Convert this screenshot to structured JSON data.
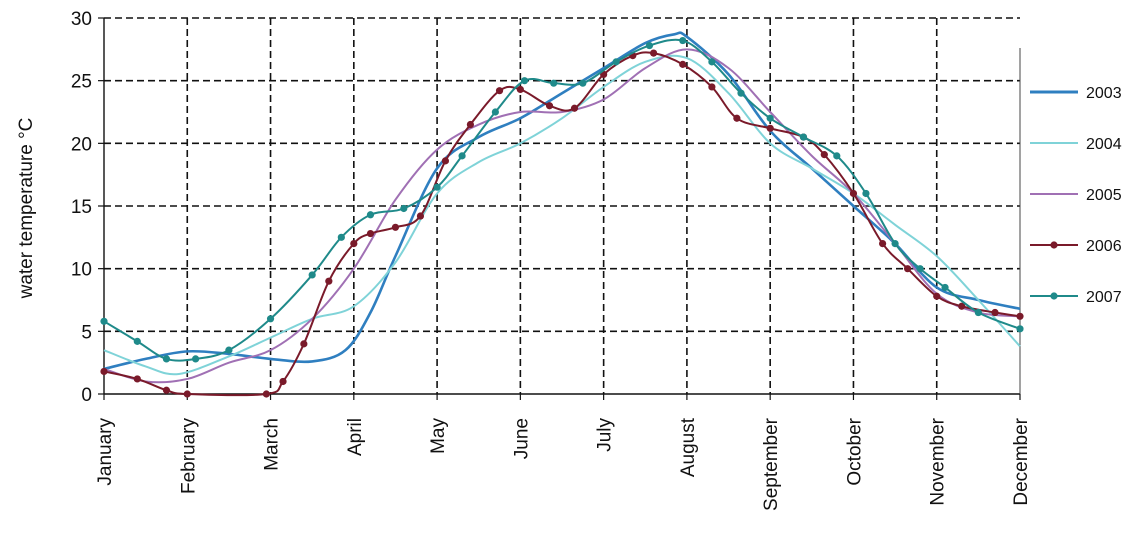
{
  "chart_data": {
    "type": "line",
    "title": "",
    "xlabel": "",
    "ylabel": "water temperature °C",
    "ylim": [
      0,
      30
    ],
    "yticks": [
      "0",
      "5",
      "10",
      "15",
      "20",
      "25",
      "30"
    ],
    "month_labels": [
      "January",
      "February",
      "March",
      "April",
      "May",
      "June",
      "July",
      "August",
      "September",
      "October",
      "November",
      "December"
    ],
    "grid": true,
    "legend_position": "right",
    "x_unit_note": "x values in months (0 = January gridline, 11 = December gridline)",
    "series": [
      {
        "name": "2003",
        "color": "#2f7fc0",
        "style": "solid",
        "markers": false,
        "x": [
          0,
          0.5,
          1,
          1.5,
          2,
          2.5,
          2.9,
          3.2,
          3.5,
          4,
          4.5,
          5,
          5.5,
          6,
          6.5,
          6.85,
          7.0,
          7.5,
          8,
          8.5,
          9,
          9.5,
          10,
          10.5,
          11
        ],
        "y": [
          2.0,
          2.8,
          3.4,
          3.2,
          2.8,
          2.6,
          3.5,
          6.5,
          11.0,
          18.0,
          20.5,
          22.0,
          24.0,
          26.0,
          28.0,
          28.7,
          28.5,
          25.5,
          21.0,
          18.0,
          15.0,
          12.0,
          8.5,
          7.5,
          6.8
        ]
      },
      {
        "name": "2004",
        "color": "#7fd3d8",
        "style": "solid",
        "markers": false,
        "x": [
          0,
          0.5,
          0.9,
          1.5,
          2,
          2.5,
          3,
          3.5,
          4,
          4.5,
          5,
          5.5,
          6,
          6.5,
          7,
          7.5,
          8,
          8.5,
          9,
          9.5,
          10,
          10.5,
          11
        ],
        "y": [
          3.5,
          2.2,
          1.6,
          3.0,
          4.5,
          6.0,
          7.0,
          10.5,
          16.0,
          18.5,
          20.0,
          22.0,
          24.5,
          26.5,
          26.8,
          24.0,
          20.0,
          18.0,
          16.0,
          13.5,
          11.0,
          7.5,
          3.8
        ]
      },
      {
        "name": "2005",
        "color": "#a070b4",
        "style": "solid",
        "markers": false,
        "x": [
          0,
          0.5,
          1,
          1.5,
          2,
          2.5,
          3,
          3.5,
          4,
          4.5,
          5,
          5.5,
          6,
          6.5,
          7,
          7.5,
          8,
          8.5,
          9,
          9.5,
          10,
          10.5,
          11
        ],
        "y": [
          2.0,
          1.0,
          1.2,
          2.5,
          3.5,
          6.0,
          10.0,
          15.5,
          19.5,
          21.5,
          22.5,
          22.5,
          23.5,
          26.0,
          27.5,
          26.0,
          22.5,
          19.0,
          16.0,
          12.0,
          8.0,
          6.5,
          6.2
        ]
      },
      {
        "name": "2006",
        "color": "#7a1a2a",
        "style": "solid",
        "markers": true,
        "x": [
          0,
          0.4,
          0.75,
          1.0,
          1.95,
          2.15,
          2.4,
          2.7,
          3.0,
          3.2,
          3.5,
          3.8,
          4.1,
          4.4,
          4.75,
          5.0,
          5.35,
          5.65,
          6.0,
          6.35,
          6.6,
          6.95,
          7.3,
          7.6,
          8.0,
          8.4,
          8.65,
          9.0,
          9.35,
          9.65,
          10.0,
          10.3,
          10.7,
          11
        ],
        "y": [
          1.8,
          1.2,
          0.3,
          0.0,
          0.0,
          1.0,
          4.0,
          9.0,
          12.0,
          12.8,
          13.3,
          14.2,
          18.6,
          21.5,
          24.2,
          24.3,
          23.0,
          22.8,
          25.5,
          27.0,
          27.2,
          26.3,
          24.5,
          22.0,
          21.2,
          20.5,
          19.1,
          16.0,
          12.0,
          10.0,
          7.8,
          7.0,
          6.5,
          6.2
        ]
      },
      {
        "name": "2007",
        "color": "#1f8a8a",
        "style": "solid",
        "markers": true,
        "x": [
          0,
          0.4,
          0.75,
          1.1,
          1.5,
          2.0,
          2.5,
          2.85,
          3.2,
          3.6,
          4.0,
          4.3,
          4.7,
          5.05,
          5.4,
          5.75,
          6.15,
          6.55,
          6.95,
          7.3,
          7.65,
          8.0,
          8.4,
          8.8,
          9.15,
          9.5,
          9.8,
          10.1,
          10.5,
          11
        ],
        "y": [
          5.8,
          4.2,
          2.8,
          2.8,
          3.5,
          6.0,
          9.5,
          12.5,
          14.3,
          14.8,
          16.5,
          19.0,
          22.5,
          25.0,
          24.8,
          24.8,
          26.5,
          27.8,
          28.2,
          26.5,
          24.0,
          22.0,
          20.5,
          19.0,
          16.0,
          12.0,
          10.0,
          8.5,
          6.5,
          5.2
        ]
      }
    ]
  }
}
